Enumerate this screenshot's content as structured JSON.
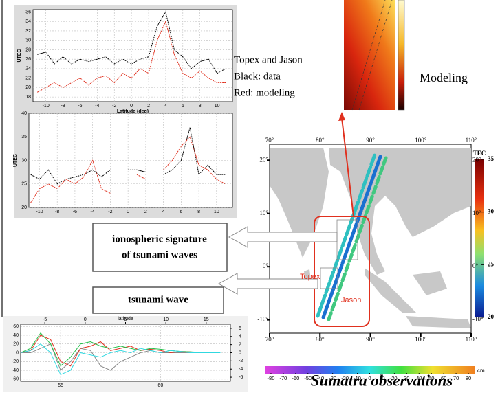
{
  "chart_data": [
    {
      "type": "line",
      "xlabel": "Latitude (deg)",
      "ylabel": "UTEC",
      "xlim": [
        -11.5,
        11.8
      ],
      "ylim": [
        17,
        36.5
      ],
      "xticks": [
        -10,
        -8,
        -6,
        -4,
        -2,
        0,
        2,
        4,
        6,
        8,
        10
      ],
      "yticks": [
        18,
        20,
        22,
        24,
        26,
        28,
        30,
        32,
        34,
        36
      ],
      "grid": true,
      "x": [
        -11,
        -10,
        -9,
        -8,
        -7,
        -6,
        -5,
        -4,
        -3,
        -2,
        -1,
        0,
        1,
        2,
        3,
        4,
        5,
        6,
        7,
        8,
        9,
        10,
        11
      ],
      "series": [
        {
          "color": "#000000",
          "values": [
            27,
            27.5,
            25,
            26.5,
            25,
            26,
            25.5,
            26,
            26.5,
            25,
            26,
            25,
            26,
            26.5,
            33,
            36,
            28,
            26.5,
            24,
            25.5,
            26,
            23,
            24
          ]
        },
        {
          "color": "#e0301e",
          "values": [
            19,
            20,
            21,
            20,
            21,
            22,
            20.5,
            22,
            22.5,
            21,
            23,
            22,
            24,
            23,
            30,
            34,
            27,
            23,
            22,
            23.5,
            22,
            21,
            21
          ]
        }
      ]
    },
    {
      "type": "line",
      "ylabel": "UTEC",
      "xlim": [
        -11.2,
        11.8
      ],
      "ylim": [
        20,
        40
      ],
      "xticks": [
        -10,
        -8,
        -6,
        -4,
        -2,
        0,
        2,
        4,
        6,
        8,
        10
      ],
      "yticks": [
        20,
        25,
        30,
        35,
        40
      ],
      "grid": true,
      "x": [
        -11,
        -10,
        -9,
        -8,
        -7,
        -6,
        -5,
        -4,
        -3,
        -2,
        -1,
        0,
        1,
        2,
        3,
        4,
        5,
        6,
        7,
        8,
        9,
        10,
        11
      ],
      "series": [
        {
          "color": "#000000",
          "values": [
            27,
            26,
            28,
            25,
            26,
            26.5,
            27,
            28,
            26.5,
            28,
            null,
            28,
            28,
            27.5,
            null,
            27,
            28,
            30,
            37,
            27,
            29,
            27,
            27
          ]
        },
        {
          "color": "#e0301e",
          "values": [
            21,
            24,
            25,
            24,
            26,
            25,
            26.5,
            30,
            24,
            23,
            null,
            null,
            27,
            26,
            null,
            28,
            30,
            33,
            35,
            29,
            28,
            26,
            25
          ]
        }
      ]
    },
    {
      "type": "line",
      "x2label": "latitude",
      "xlim": [
        53,
        63.5
      ],
      "ylim": [
        -65,
        65
      ],
      "y2lim": [
        -7,
        7
      ],
      "x2lim": [
        -8,
        18
      ],
      "xticks": [
        55,
        60
      ],
      "yticks": [
        60,
        40,
        20,
        0,
        -20,
        -40,
        -60
      ],
      "y2ticks": [
        6,
        4,
        2,
        0,
        -2,
        -4,
        -6
      ],
      "x2ticks": [
        -5,
        0,
        5,
        10,
        15
      ],
      "grid": true,
      "x": [
        53,
        53.5,
        54,
        54.5,
        55,
        55.5,
        56,
        56.5,
        57,
        57.5,
        58,
        58.5,
        59,
        59.5,
        60,
        60.5,
        61,
        61.5,
        62,
        62.5,
        63
      ],
      "series": [
        {
          "color": "#888888",
          "values": [
            0,
            0,
            10,
            20,
            -40,
            -20,
            10,
            5,
            -30,
            -40,
            -20,
            -10,
            0,
            5,
            0,
            0,
            0,
            0,
            0,
            0,
            0
          ]
        },
        {
          "color": "#e0301e",
          "values": [
            0,
            5,
            40,
            30,
            -20,
            -30,
            10,
            15,
            25,
            5,
            10,
            15,
            5,
            8,
            5,
            0,
            3,
            2,
            0,
            0,
            0
          ]
        },
        {
          "color": "#22c04a",
          "values": [
            0,
            10,
            45,
            20,
            -30,
            -10,
            20,
            25,
            15,
            10,
            15,
            10,
            5,
            10,
            8,
            5,
            3,
            2,
            1,
            0,
            0
          ]
        },
        {
          "color": "#30d8e0",
          "values": [
            0,
            5,
            20,
            0,
            -50,
            -40,
            0,
            -5,
            -10,
            0,
            5,
            0,
            10,
            5,
            0,
            5,
            3,
            0,
            0,
            0,
            0
          ]
        }
      ]
    }
  ],
  "annotations": {
    "legend_lines": [
      "Topex and Jason",
      "Black: data",
      "Red: modeling"
    ],
    "modeling": "Modeling",
    "box_ionospheric": [
      "ionospheric signature",
      "of tsunami waves"
    ],
    "box_tsunami": "tsunami wave",
    "caption": "Sumatra observations"
  },
  "map": {
    "xlim": [
      70,
      110
    ],
    "ylim": [
      -12.5,
      23
    ],
    "lon_ticks": [
      {
        "value": 70,
        "label": "70°"
      },
      {
        "value": 80,
        "label": "80°"
      },
      {
        "value": 90,
        "label": "90°"
      },
      {
        "value": 100,
        "label": "100°"
      },
      {
        "value": 110,
        "label": "110°"
      }
    ],
    "lat_ticks": [
      {
        "value": 20,
        "label": "20°"
      },
      {
        "value": 10,
        "label": "10°"
      },
      {
        "value": 0,
        "label": "0°"
      },
      {
        "value": -10,
        "label": "-10°"
      }
    ],
    "track_labels": [
      "Topex",
      "Jason"
    ],
    "tec_colorbar": {
      "title": "TEC",
      "range": [
        20,
        35
      ],
      "ticks": [
        35,
        30,
        25,
        20
      ]
    },
    "cm_colorbar": {
      "unit": "cm",
      "range": [
        -85,
        85
      ],
      "ticks": [
        -80,
        -70,
        -60,
        -50,
        -40,
        -30,
        -20,
        -10,
        0,
        10,
        20,
        30,
        40,
        50,
        60,
        70,
        80
      ]
    }
  }
}
